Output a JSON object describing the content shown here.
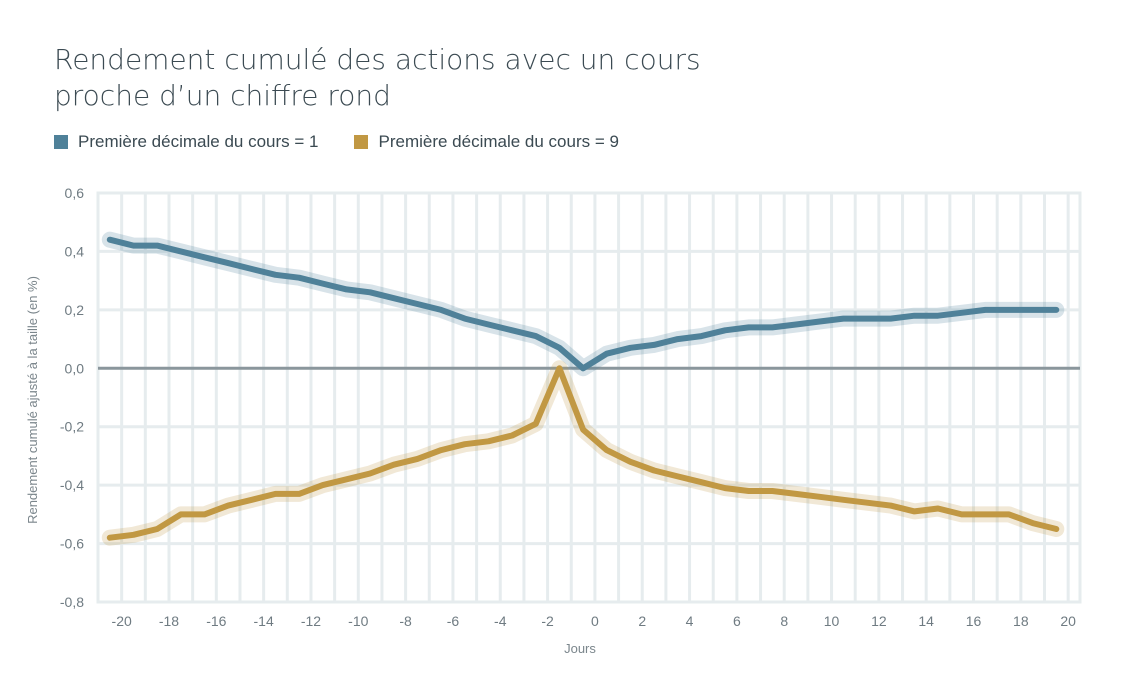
{
  "title_line1": "Rendement cumulé des actions avec un cours",
  "title_line2": "proche d’un chiffre rond",
  "colors": {
    "blue": "#4f8199",
    "gold": "#c19843",
    "grid": "#e6ecee",
    "zero": "#8a969c"
  },
  "chart_data": {
    "type": "line",
    "title": "Rendement cumulé des actions avec un cours proche d’un chiffre rond",
    "xlabel": "Jours",
    "ylabel": "Rendement cumulé ajusté à la taille (en %)",
    "xlim": [
      -21,
      20.5
    ],
    "ylim": [
      -0.8,
      0.6
    ],
    "xticks": [
      -20,
      -18,
      -16,
      -14,
      -12,
      -10,
      -8,
      -6,
      -4,
      -2,
      0,
      2,
      4,
      6,
      8,
      10,
      12,
      14,
      16,
      18,
      20
    ],
    "xtick_labels": [
      "-20",
      "-18",
      "-16",
      "-14",
      "-12",
      "-10",
      "-8",
      "-6",
      "-4",
      "-2",
      "0",
      "2",
      "4",
      "6",
      "8",
      "10",
      "12",
      "14",
      "16",
      "18",
      "20"
    ],
    "yticks": [
      0.6,
      0.4,
      0.2,
      0.0,
      -0.2,
      -0.4,
      -0.6,
      -0.8
    ],
    "ytick_labels": [
      "0,6",
      "0,4",
      "0,2",
      "0,0",
      "-0,2",
      "-0,4",
      "-0,6",
      "-0,8"
    ],
    "grid": true,
    "legend_position": "top-left",
    "x": [
      -20.5,
      -19.5,
      -18.5,
      -17.5,
      -16.5,
      -15.5,
      -14.5,
      -13.5,
      -12.5,
      -11.5,
      -10.5,
      -9.5,
      -8.5,
      -7.5,
      -6.5,
      -5.5,
      -4.5,
      -3.5,
      -2.5,
      -1.5,
      -0.5,
      0.5,
      1.5,
      2.5,
      3.5,
      4.5,
      5.5,
      6.5,
      7.5,
      8.5,
      9.5,
      10.5,
      11.5,
      12.5,
      13.5,
      14.5,
      15.5,
      16.5,
      17.5,
      18.5,
      19.5
    ],
    "series": [
      {
        "name": "Première décimale du cours = 1",
        "color": "#4f8199",
        "values": [
          0.44,
          0.42,
          0.42,
          0.4,
          0.38,
          0.36,
          0.34,
          0.32,
          0.31,
          0.29,
          0.27,
          0.26,
          0.24,
          0.22,
          0.2,
          0.17,
          0.15,
          0.13,
          0.11,
          0.07,
          0.0,
          0.05,
          0.07,
          0.08,
          0.1,
          0.11,
          0.13,
          0.14,
          0.14,
          0.15,
          0.16,
          0.17,
          0.17,
          0.17,
          0.18,
          0.18,
          0.19,
          0.2,
          0.2,
          0.2,
          0.2
        ]
      },
      {
        "name": "Première décimale du cours = 9",
        "color": "#c19843",
        "values": [
          -0.58,
          -0.57,
          -0.55,
          -0.5,
          -0.5,
          -0.47,
          -0.45,
          -0.43,
          -0.43,
          -0.4,
          -0.38,
          -0.36,
          -0.33,
          -0.31,
          -0.28,
          -0.26,
          -0.25,
          -0.23,
          -0.19,
          0.0,
          -0.21,
          -0.28,
          -0.32,
          -0.35,
          -0.37,
          -0.39,
          -0.41,
          -0.42,
          -0.42,
          -0.43,
          -0.44,
          -0.45,
          -0.46,
          -0.47,
          -0.49,
          -0.48,
          -0.5,
          -0.5,
          -0.5,
          -0.53,
          -0.55
        ]
      }
    ]
  }
}
